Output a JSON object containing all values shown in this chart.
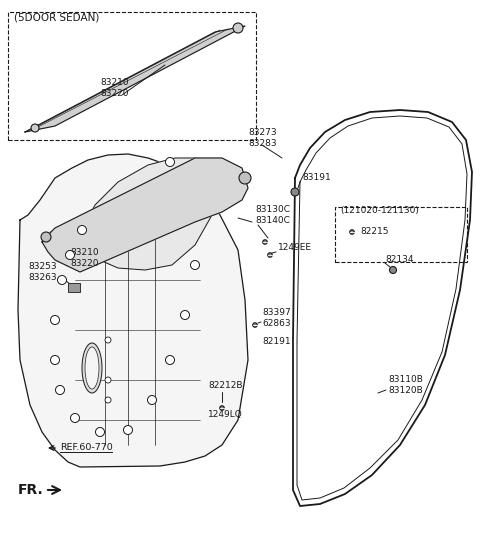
{
  "bg_color": "#ffffff",
  "line_color": "#1a1a1a",
  "label_color": "#1a1a1a",
  "labels": {
    "5door_sedan": "(5DOOR SEDAN)",
    "83210_83220_top": "83210\n83220",
    "83210_83220_mid": "83210\n83220",
    "83273_83283": "83273\n83283",
    "83191": "83191",
    "83130c_83140c": "83130C\n83140C",
    "1249ee": "1249EE",
    "83253_83263": "83253\n83263",
    "83397_62863": "83397\n62863",
    "82191": "82191",
    "82212b": "82212B",
    "1249lq": "1249LQ",
    "ref": "REF.60-770",
    "fr": "FR.",
    "121020_121130": "(121020-121130)",
    "82215": "82215",
    "82134": "82134",
    "83110b_83120b": "83110B\n83120B"
  }
}
